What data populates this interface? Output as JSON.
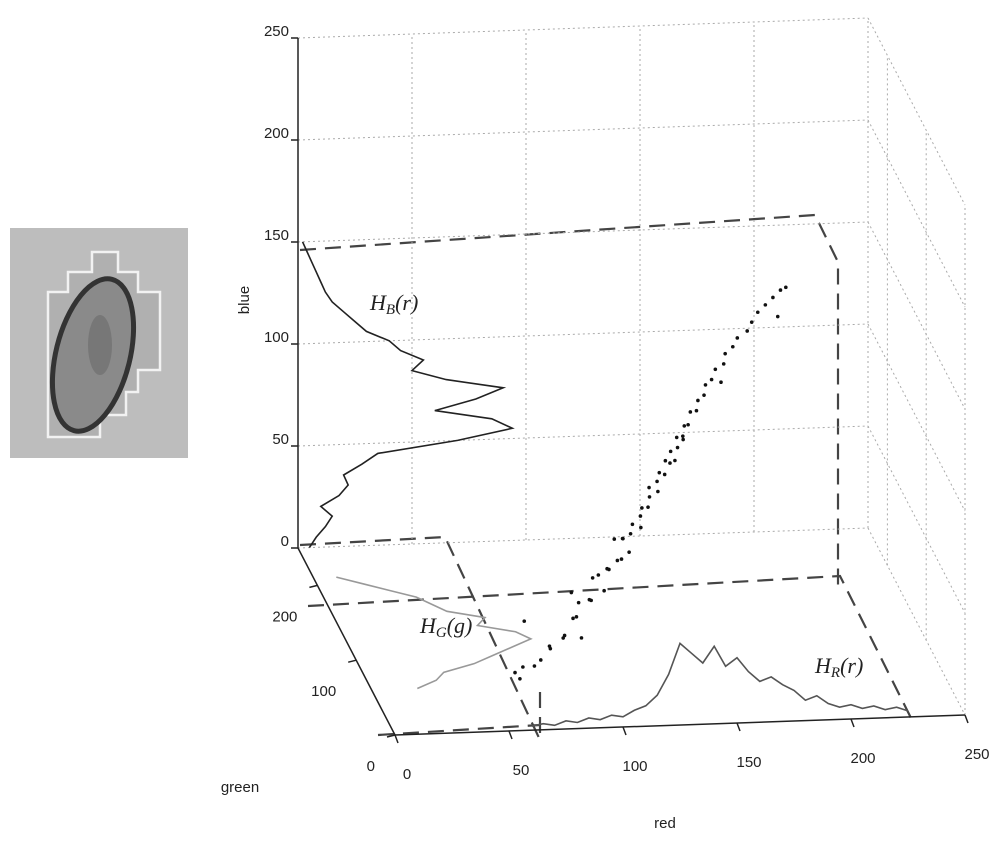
{
  "chart_data": {
    "type": "scatter3d",
    "xlabel": "red",
    "ylabel": "green",
    "zlabel": "blue",
    "xlim": [
      0,
      250
    ],
    "ylim": [
      0,
      250
    ],
    "zlim": [
      0,
      250
    ],
    "xticks": [
      0,
      50,
      100,
      150,
      200,
      250
    ],
    "yticks": [
      0,
      100,
      200
    ],
    "zticks": [
      0,
      50,
      100,
      150,
      200,
      250
    ],
    "grid": true,
    "color": "#111",
    "points": [
      [
        62,
        55,
        8
      ],
      [
        65,
        60,
        3
      ],
      [
        70,
        52,
        12
      ],
      [
        68,
        70,
        5
      ],
      [
        75,
        65,
        10
      ],
      [
        78,
        58,
        18
      ],
      [
        80,
        72,
        14
      ],
      [
        85,
        66,
        20
      ],
      [
        88,
        80,
        16
      ],
      [
        90,
        70,
        28
      ],
      [
        92,
        60,
        22
      ],
      [
        95,
        85,
        30
      ],
      [
        98,
        75,
        35
      ],
      [
        100,
        82,
        32
      ],
      [
        102,
        90,
        40
      ],
      [
        105,
        78,
        38
      ],
      [
        108,
        88,
        45
      ],
      [
        110,
        95,
        42
      ],
      [
        112,
        85,
        50
      ],
      [
        115,
        92,
        48
      ],
      [
        117,
        100,
        55
      ],
      [
        118,
        90,
        52
      ],
      [
        120,
        98,
        58
      ],
      [
        122,
        105,
        60
      ],
      [
        124,
        95,
        62
      ],
      [
        125,
        102,
        65
      ],
      [
        127,
        110,
        66
      ],
      [
        128,
        100,
        70
      ],
      [
        130,
        108,
        72
      ],
      [
        131,
        115,
        74
      ],
      [
        133,
        104,
        76
      ],
      [
        134,
        112,
        78
      ],
      [
        136,
        118,
        80
      ],
      [
        137,
        110,
        82
      ],
      [
        139,
        120,
        85
      ],
      [
        140,
        114,
        86
      ],
      [
        142,
        124,
        88
      ],
      [
        144,
        118,
        92
      ],
      [
        145,
        126,
        94
      ],
      [
        147,
        122,
        96
      ],
      [
        149,
        130,
        98
      ],
      [
        150,
        126,
        100
      ],
      [
        152,
        132,
        104
      ],
      [
        154,
        128,
        106
      ],
      [
        156,
        136,
        108
      ],
      [
        158,
        132,
        112
      ],
      [
        160,
        140,
        114
      ],
      [
        162,
        136,
        118
      ],
      [
        165,
        144,
        120
      ],
      [
        168,
        140,
        124
      ],
      [
        170,
        148,
        126
      ],
      [
        173,
        146,
        130
      ],
      [
        176,
        152,
        132
      ],
      [
        180,
        150,
        136
      ],
      [
        183,
        156,
        138
      ],
      [
        186,
        158,
        142
      ],
      [
        190,
        162,
        144
      ],
      [
        194,
        166,
        146
      ],
      [
        198,
        170,
        148
      ],
      [
        200,
        168,
        150
      ],
      [
        96,
        40,
        60
      ],
      [
        85,
        45,
        50
      ],
      [
        110,
        60,
        70
      ],
      [
        72,
        90,
        20
      ],
      [
        100,
        120,
        10
      ],
      [
        140,
        80,
        110
      ],
      [
        160,
        100,
        130
      ],
      [
        120,
        140,
        40
      ],
      [
        150,
        160,
        70
      ],
      [
        190,
        130,
        150
      ]
    ],
    "histograms": [
      {
        "name": {
          "main": "H",
          "sub": "B",
          "arg": "(r)"
        },
        "color": "#222",
        "x": [
          0,
          5,
          10,
          15,
          20,
          25,
          30,
          35,
          40,
          45,
          50,
          55,
          60,
          65,
          70,
          75,
          80,
          85,
          90,
          95,
          100,
          105,
          110,
          115,
          120,
          125,
          130,
          135,
          140,
          145,
          150
        ],
        "values": [
          5,
          8,
          12,
          15,
          10,
          18,
          22,
          20,
          28,
          35,
          70,
          94,
          85,
          60,
          78,
          90,
          65,
          50,
          55,
          45,
          40,
          30,
          25,
          20,
          15,
          12,
          10,
          8,
          6,
          4,
          2
        ]
      },
      {
        "name": {
          "main": "H",
          "sub": "G",
          "arg": "(g)"
        },
        "color": "#999",
        "x": [
          60,
          70,
          80,
          90,
          100,
          110,
          120,
          130,
          140,
          150,
          160,
          170,
          180,
          190,
          200,
          210
        ],
        "values": [
          20,
          30,
          35,
          50,
          60,
          70,
          80,
          75,
          60,
          65,
          50,
          45,
          40,
          30,
          20,
          10
        ]
      },
      {
        "name": {
          "main": "H",
          "sub": "R",
          "arg": "(r)"
        },
        "color": "#555",
        "x": [
          60,
          65,
          70,
          75,
          80,
          85,
          90,
          95,
          100,
          105,
          110,
          115,
          120,
          125,
          130,
          135,
          140,
          145,
          150,
          155,
          160,
          165,
          170,
          175,
          180,
          185,
          190,
          195,
          200,
          205,
          210,
          215,
          220,
          225
        ],
        "values": [
          2,
          3,
          2,
          4,
          3,
          5,
          4,
          6,
          5,
          8,
          10,
          15,
          25,
          40,
          35,
          30,
          38,
          28,
          32,
          25,
          20,
          22,
          18,
          15,
          10,
          12,
          8,
          6,
          7,
          5,
          6,
          4,
          5,
          3
        ]
      }
    ]
  }
}
